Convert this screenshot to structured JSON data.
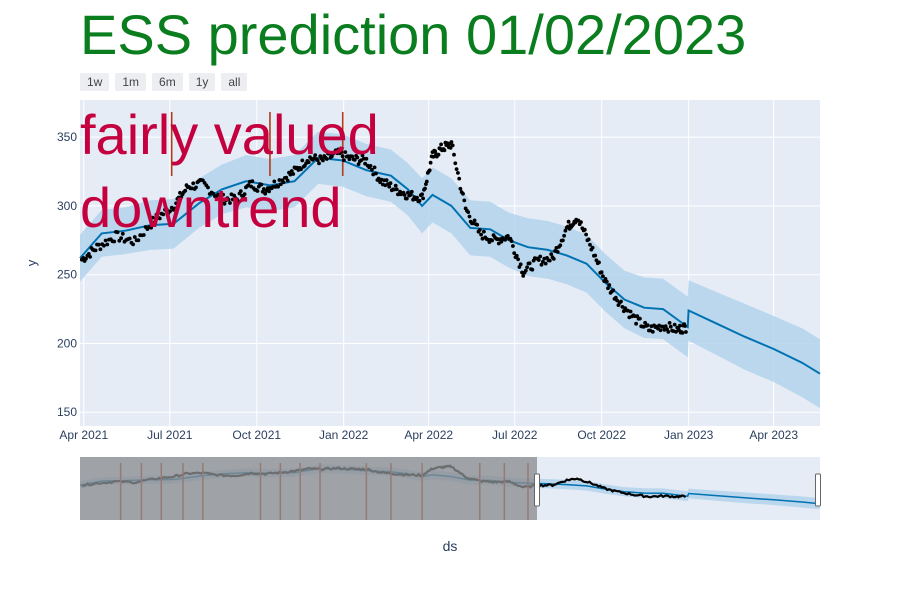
{
  "title": "ESS prediction 01/02/2023",
  "colors": {
    "title": "#0a7d1e",
    "annotation": "#c4003f",
    "plot_bg": "#e5ecf6",
    "forecast_line": "#0072b2",
    "band": "#b3d3ec",
    "changepoint": "#b5391a",
    "actual": "#000000",
    "slider_mask": "#8c8d90"
  },
  "range_buttons": [
    "1w",
    "1m",
    "6m",
    "1y",
    "all"
  ],
  "annotations": [
    "fairly valued",
    "downtrend"
  ],
  "chart_data": {
    "type": "line",
    "xlabel": "ds",
    "ylabel": "y",
    "x_ticks": [
      "Apr 2021",
      "Jul 2021",
      "Oct 2021",
      "Jan 2022",
      "Apr 2022",
      "Jul 2022",
      "Oct 2022",
      "Jan 2023",
      "Apr 2023"
    ],
    "x_range": [
      "2021-03-28",
      "2023-05-20"
    ],
    "y_ticks": [
      150,
      200,
      250,
      300,
      350
    ],
    "ylim": [
      140,
      377
    ],
    "forecast": {
      "x": [
        "2021-03-28",
        "2021-04-20",
        "2021-05-15",
        "2021-06-10",
        "2021-07-05",
        "2021-08-01",
        "2021-08-25",
        "2021-09-20",
        "2021-10-15",
        "2021-11-10",
        "2021-12-05",
        "2021-12-31",
        "2022-01-25",
        "2022-02-20",
        "2022-03-10",
        "2022-03-25",
        "2022-04-05",
        "2022-04-25",
        "2022-05-15",
        "2022-06-05",
        "2022-06-25",
        "2022-07-15",
        "2022-08-05",
        "2022-08-25",
        "2022-09-15",
        "2022-10-05",
        "2022-10-25",
        "2022-11-15",
        "2022-12-05",
        "2022-12-31",
        "2023-01-01",
        "2023-02-01",
        "2023-03-01",
        "2023-04-01",
        "2023-05-01",
        "2023-05-20"
      ],
      "y": [
        262,
        280,
        282,
        286,
        287,
        302,
        312,
        318,
        315,
        318,
        335,
        333,
        326,
        322,
        312,
        300,
        308,
        300,
        284,
        283,
        275,
        270,
        268,
        264,
        258,
        244,
        232,
        226,
        225,
        212,
        224,
        214,
        205,
        196,
        186,
        178
      ]
    },
    "band_halfwidth": [
      17,
      17,
      17,
      18,
      18,
      18,
      18,
      19,
      19,
      19,
      19,
      19,
      19,
      19,
      19,
      20,
      20,
      20,
      20,
      20,
      20,
      21,
      21,
      21,
      21,
      21,
      21,
      22,
      22,
      22,
      22,
      23,
      24,
      24,
      25,
      25
    ],
    "actual": {
      "x": [
        "2021-03-30",
        "2021-04-15",
        "2021-05-05",
        "2021-05-25",
        "2021-06-15",
        "2021-07-05",
        "2021-07-20",
        "2021-08-05",
        "2021-08-25",
        "2021-09-10",
        "2021-09-25",
        "2021-10-10",
        "2021-10-25",
        "2021-11-10",
        "2021-11-25",
        "2021-12-10",
        "2021-12-25",
        "2022-01-10",
        "2022-01-25",
        "2022-02-10",
        "2022-02-25",
        "2022-03-10",
        "2022-03-25",
        "2022-04-05",
        "2022-04-15",
        "2022-04-25",
        "2022-05-10",
        "2022-05-25",
        "2022-06-10",
        "2022-06-25",
        "2022-07-10",
        "2022-07-25",
        "2022-08-10",
        "2022-08-25",
        "2022-09-05",
        "2022-09-20",
        "2022-10-05",
        "2022-10-20",
        "2022-11-05",
        "2022-11-20",
        "2022-12-05",
        "2022-12-20",
        "2022-12-30"
      ],
      "y": [
        261,
        270,
        278,
        274,
        290,
        300,
        314,
        316,
        305,
        305,
        316,
        312,
        318,
        325,
        335,
        333,
        338,
        334,
        333,
        318,
        312,
        308,
        306,
        336,
        342,
        345,
        298,
        280,
        275,
        278,
        252,
        260,
        262,
        284,
        292,
        270,
        245,
        230,
        218,
        210,
        213,
        210,
        212
      ]
    },
    "changepoints": [
      "2021-07-03",
      "2021-10-15",
      "2021-12-31"
    ],
    "slider_changepoints": [
      "2021-05-10",
      "2021-06-01",
      "2021-06-22",
      "2021-07-15",
      "2021-08-05",
      "2021-10-05",
      "2021-10-26",
      "2021-11-16",
      "2021-12-07",
      "2022-01-25",
      "2022-02-20",
      "2022-03-25",
      "2022-05-25",
      "2022-06-20",
      "2022-07-15"
    ]
  }
}
